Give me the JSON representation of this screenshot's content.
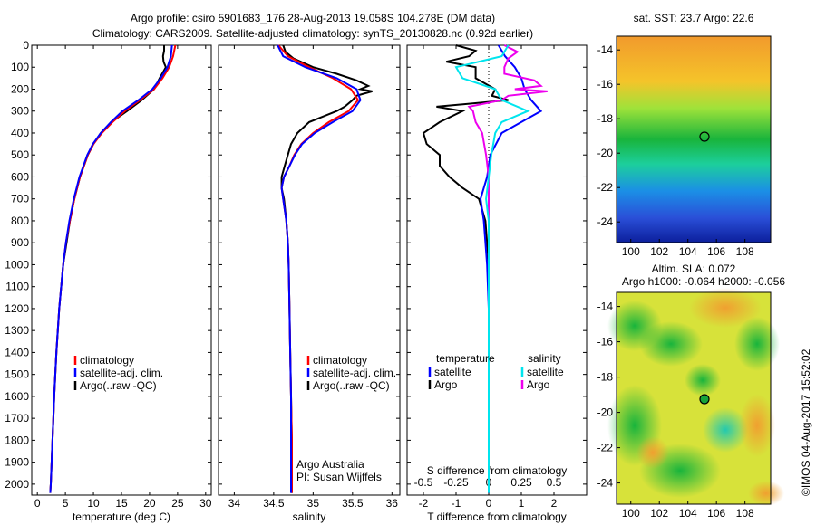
{
  "header": {
    "line1": "Argo profile: csiro 5901683_176 28-Aug-2013 19.058S 104.278E (DM data)",
    "line2": "Climatology: CARS2009. Satellite-adjusted climatology: synTS_20130828.nc (0.92d earlier)"
  },
  "colors": {
    "climatology": "#ff0000",
    "satellite": "#0000ff",
    "argo": "#000000",
    "satellite_s": "#00e5ee",
    "argo_s": "#ee00ee"
  },
  "depth_axis": {
    "ticks": [
      0,
      100,
      200,
      300,
      400,
      500,
      600,
      700,
      800,
      900,
      1000,
      1100,
      1200,
      1300,
      1400,
      1500,
      1600,
      1700,
      1800,
      1900,
      2000
    ]
  },
  "temp_panel": {
    "xlabel": "temperature (deg C)",
    "xticks": [
      0,
      5,
      10,
      15,
      20,
      25,
      30
    ],
    "legend": [
      "climatology",
      "satellite-adj. clim.",
      "Argo(..raw -QC)"
    ]
  },
  "sal_panel": {
    "xlabel": "salinity",
    "xticks": [
      "34",
      "34.5",
      "35",
      "35.5",
      "36"
    ],
    "legend": [
      "climatology",
      "satellite-adj. clim.",
      "Argo(..raw -QC)"
    ],
    "credit1": "Argo Australia",
    "credit2": "PI: Susan Wijffels"
  },
  "diff_panel": {
    "xlabel": "T difference from climatology",
    "top_label": "S difference from climatology",
    "t_ticks": [
      "-2",
      "-1",
      "0",
      "1",
      "2"
    ],
    "s_ticks": [
      "-0.5",
      "-0.25",
      "0",
      "0.25",
      "0.5"
    ],
    "legend_temp_title": "temperature",
    "legend_sal_title": "salinity",
    "legend_temp": [
      "satellite",
      "Argo"
    ],
    "legend_sal": [
      "satellite",
      "Argo"
    ]
  },
  "sst_map": {
    "title": "sat. SST: 23.7 Argo: 22.6",
    "yticks": [
      "-14",
      "-16",
      "-18",
      "-20",
      "-22",
      "-24"
    ],
    "xticks": [
      "100",
      "102",
      "104",
      "106",
      "108"
    ]
  },
  "sla_map": {
    "title1": "Altim. SLA: 0.072",
    "title2": "Argo h1000: -0.064 h2000: -0.056",
    "yticks": [
      "-14",
      "-16",
      "-18",
      "-20",
      "-22",
      "-24"
    ],
    "xticks": [
      "100",
      "102",
      "104",
      "106",
      "108"
    ]
  },
  "footer": "©IMOS 04-Aug-2017 15:52:02",
  "chart_data": [
    {
      "type": "line",
      "title": "",
      "xlabel": "temperature (deg C)",
      "ylabel": "",
      "xlim": [
        -1,
        31
      ],
      "ylim": [
        2050,
        0
      ],
      "series": [
        {
          "name": "climatology",
          "depth": [
            0,
            50,
            100,
            150,
            200,
            250,
            300,
            350,
            400,
            450,
            500,
            600,
            700,
            800,
            900,
            1000,
            1200,
            1400,
            1600,
            1800,
            2000,
            2040
          ],
          "values": [
            24.6,
            24.2,
            23.5,
            22.3,
            20.8,
            18.3,
            15.6,
            13.4,
            11.5,
            10.0,
            9.0,
            7.6,
            6.6,
            5.8,
            5.1,
            4.6,
            3.9,
            3.4,
            3.0,
            2.7,
            2.4,
            2.3
          ]
        },
        {
          "name": "satellite-adj. clim.",
          "depth": [
            0,
            50,
            100,
            150,
            200,
            250,
            300,
            350,
            400,
            450,
            500,
            600,
            700,
            800,
            900,
            1000,
            1200,
            1400,
            1600,
            1800,
            2000,
            2040
          ],
          "values": [
            24.0,
            23.8,
            23.2,
            22.0,
            20.5,
            18.0,
            15.2,
            13.1,
            11.3,
            9.9,
            8.9,
            7.5,
            6.5,
            5.7,
            5.1,
            4.6,
            3.9,
            3.4,
            3.0,
            2.7,
            2.4,
            2.3
          ]
        },
        {
          "name": "Argo(..raw -QC)",
          "depth": [
            0,
            25,
            50,
            75,
            100,
            150,
            200,
            250,
            300,
            350,
            400,
            450,
            500,
            600,
            700,
            800,
            900,
            1000,
            1200,
            1400,
            1600,
            1800,
            2000,
            2040
          ],
          "values": [
            22.6,
            22.6,
            22.4,
            22.5,
            22.9,
            21.8,
            20.8,
            18.6,
            16.0,
            13.2,
            11.3,
            10.0,
            9.0,
            7.6,
            6.6,
            5.8,
            5.2,
            4.6,
            3.9,
            3.4,
            3.0,
            2.7,
            2.4,
            2.3
          ]
        }
      ]
    },
    {
      "type": "line",
      "title": "",
      "xlabel": "salinity",
      "ylabel": "",
      "xlim": [
        33.8,
        36.1
      ],
      "ylim": [
        2050,
        0
      ],
      "series": [
        {
          "name": "climatology",
          "depth": [
            0,
            50,
            100,
            150,
            200,
            250,
            300,
            350,
            400,
            450,
            500,
            550,
            600,
            650,
            700,
            800,
            900,
            1000,
            1200,
            1400,
            1600,
            1800,
            2000,
            2040
          ],
          "values": [
            34.56,
            34.68,
            34.95,
            35.25,
            35.48,
            35.57,
            35.45,
            35.2,
            35.0,
            34.85,
            34.76,
            34.7,
            34.63,
            34.6,
            34.62,
            34.66,
            34.68,
            34.69,
            34.7,
            34.71,
            34.72,
            34.73,
            34.73,
            34.73
          ]
        },
        {
          "name": "satellite-adj. clim.",
          "depth": [
            0,
            50,
            100,
            150,
            200,
            250,
            300,
            350,
            400,
            450,
            500,
            550,
            600,
            650,
            700,
            800,
            900,
            1000,
            1200,
            1400,
            1600,
            1800,
            2000,
            2040
          ],
          "values": [
            34.55,
            34.62,
            34.9,
            35.3,
            35.55,
            35.6,
            35.5,
            35.25,
            35.02,
            34.86,
            34.77,
            34.7,
            34.63,
            34.6,
            34.62,
            34.66,
            34.68,
            34.69,
            34.7,
            34.71,
            34.72,
            34.72,
            34.72,
            34.72
          ]
        },
        {
          "name": "Argo(..raw -QC)",
          "depth": [
            0,
            30,
            60,
            100,
            130,
            160,
            185,
            200,
            210,
            230,
            250,
            280,
            300,
            350,
            400,
            450,
            500,
            550,
            600,
            650,
            700,
            800,
            900,
            1000,
            1200,
            1400,
            1600,
            1800,
            2000,
            2040
          ],
          "values": [
            34.62,
            34.65,
            34.75,
            35.0,
            35.3,
            35.55,
            35.7,
            35.6,
            35.75,
            35.55,
            35.5,
            35.4,
            35.3,
            34.95,
            34.8,
            34.72,
            34.68,
            34.64,
            34.6,
            34.6,
            34.63,
            34.66,
            34.68,
            34.69,
            34.7,
            34.71,
            34.72,
            34.73,
            34.73,
            34.73
          ]
        }
      ]
    },
    {
      "type": "line",
      "title": "",
      "xlabel": "T difference from climatology",
      "ylabel": "",
      "xlim": [
        -2.5,
        3
      ],
      "ylim": [
        2050,
        0
      ],
      "series": [
        {
          "name": "temperature satellite",
          "depth": [
            0,
            50,
            100,
            150,
            200,
            250,
            300,
            400,
            500,
            600,
            700,
            800,
            1000,
            1200,
            1400,
            1600,
            1800,
            2000,
            2040
          ],
          "values": [
            0.3,
            0.5,
            0.8,
            1.0,
            1.1,
            1.3,
            1.6,
            0.4,
            0.05,
            -0.05,
            -0.25,
            -0.15,
            -0.05,
            0,
            0,
            0,
            0,
            0,
            0
          ]
        },
        {
          "name": "temperature Argo",
          "depth": [
            0,
            25,
            50,
            75,
            100,
            150,
            200,
            230,
            250,
            280,
            300,
            350,
            400,
            450,
            500,
            550,
            600,
            650,
            700,
            750,
            800,
            1000,
            1200,
            1400,
            1600,
            1800,
            2000,
            2040
          ],
          "values": [
            -1.0,
            -0.4,
            -0.6,
            -1.3,
            -0.4,
            -0.4,
            0.2,
            0.1,
            0.6,
            -1.6,
            -0.8,
            -1.5,
            -2.0,
            -1.9,
            -1.5,
            -1.5,
            -1.2,
            -0.8,
            -0.3,
            -0.2,
            -0.1,
            0,
            0,
            0,
            0,
            0,
            0,
            0
          ]
        },
        {
          "name": "salinity satellite",
          "depth": [
            0,
            50,
            100,
            150,
            200,
            250,
            300,
            350,
            400,
            500,
            600,
            700,
            800,
            1000,
            1200,
            1400,
            1600,
            1800,
            2000,
            2040
          ],
          "values": [
            0.15,
            0.1,
            -0.25,
            -0.2,
            0.05,
            0.1,
            0.3,
            0.1,
            0.05,
            0.02,
            0,
            -0.02,
            0,
            0,
            0,
            0,
            0,
            0,
            0,
            0
          ]
        },
        {
          "name": "salinity Argo",
          "depth": [
            0,
            30,
            60,
            100,
            130,
            160,
            185,
            200,
            210,
            230,
            250,
            280,
            300,
            350,
            400,
            500,
            600,
            700,
            800,
            1000,
            1200,
            1400,
            1600,
            1800,
            2000,
            2040
          ],
          "values": [
            0.12,
            0.22,
            0.15,
            0.12,
            0.12,
            0.35,
            0.4,
            0.2,
            0.45,
            0.15,
            0.1,
            -0.15,
            -0.12,
            -0.1,
            -0.05,
            -0.02,
            0,
            0,
            0,
            0,
            0,
            0,
            0,
            0,
            0,
            0
          ]
        }
      ]
    }
  ]
}
